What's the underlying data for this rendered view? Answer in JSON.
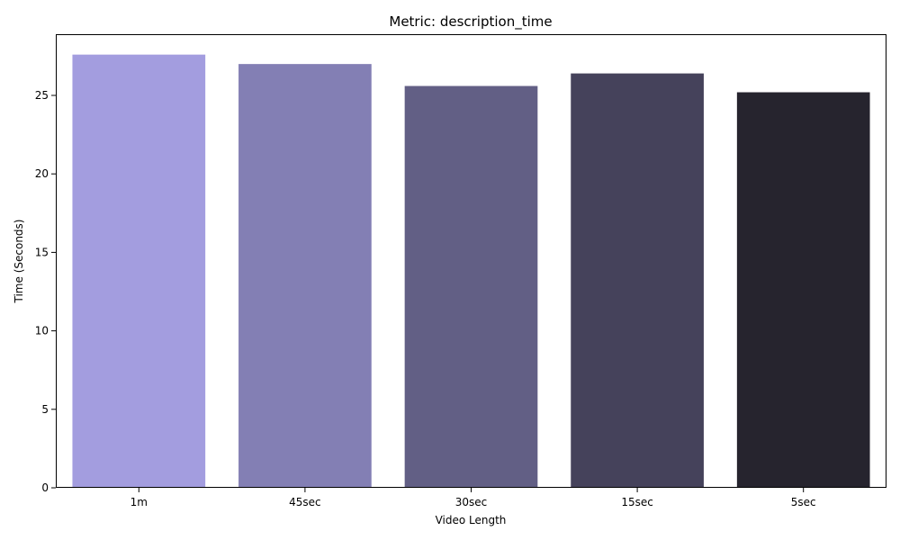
{
  "chart_data": {
    "type": "bar",
    "title": "Metric: description_time",
    "xlabel": "Video Length",
    "ylabel": "Time (Seconds)",
    "categories": [
      "1m",
      "45sec",
      "30sec",
      "15sec",
      "5sec"
    ],
    "values": [
      27.6,
      27.0,
      25.6,
      26.4,
      25.2
    ],
    "colors": [
      "#a39ddf",
      "#837fb4",
      "#625f85",
      "#45425b",
      "#26242e"
    ],
    "ylim": [
      0,
      28.9
    ],
    "yticks": [
      0,
      5,
      10,
      15,
      20,
      25
    ],
    "grid": false,
    "legend": null
  }
}
